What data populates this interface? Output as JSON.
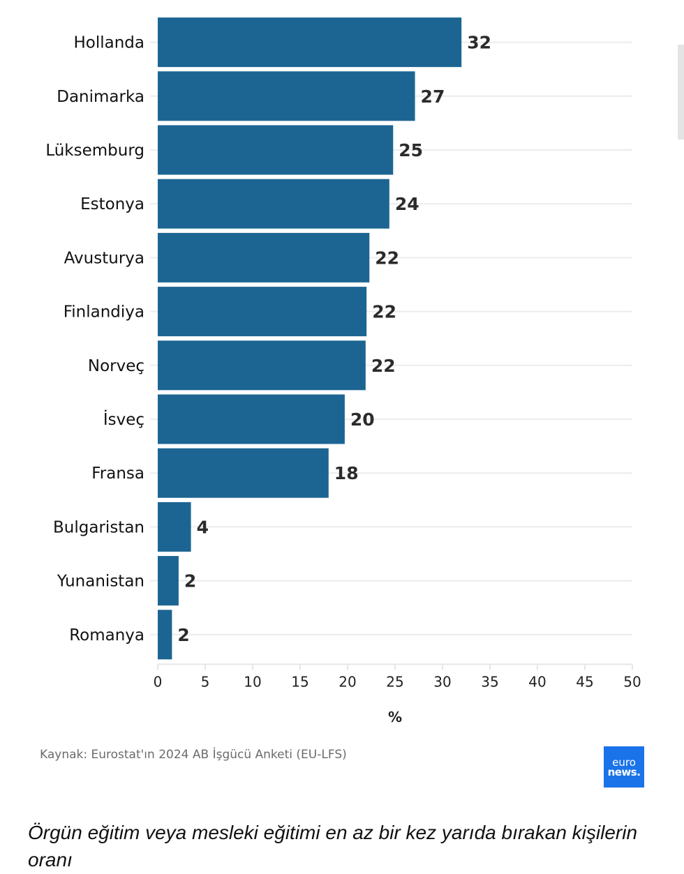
{
  "chart_data": {
    "type": "bar",
    "orientation": "horizontal",
    "categories": [
      "Hollanda",
      "Danimarka",
      "Lüksemburg",
      "Estonya",
      "Avusturya",
      "Finlandiya",
      "Norveç",
      "İsveç",
      "Fransa",
      "Bulgaristan",
      "Yunanistan",
      "Romanya"
    ],
    "values": [
      32.0,
      27.1,
      24.8,
      24.4,
      22.3,
      22.0,
      21.9,
      19.7,
      18.0,
      3.5,
      2.2,
      1.5
    ],
    "data_labels": [
      "32",
      "27",
      "25",
      "24",
      "22",
      "22",
      "22",
      "20",
      "18",
      "4",
      "2",
      "2"
    ],
    "xlabel": "%",
    "ylabel": "",
    "xlim": [
      0,
      50
    ],
    "xticks": [
      "0",
      "5",
      "10",
      "15",
      "20",
      "25",
      "30",
      "35",
      "40",
      "45",
      "50"
    ],
    "grid": true,
    "bar_color": "#1c6592",
    "legend": "none"
  },
  "source_text": "Kaynak: Eurostat'ın 2024 AB İşgücü Anketi (EU-LFS)",
  "logo": {
    "line1": "euro",
    "line2": "news.",
    "color": "#1a73e8"
  },
  "caption": "Örgün eğitim veya mesleki eğitimi en az bir kez yarıda bırakan kişilerin oranı"
}
